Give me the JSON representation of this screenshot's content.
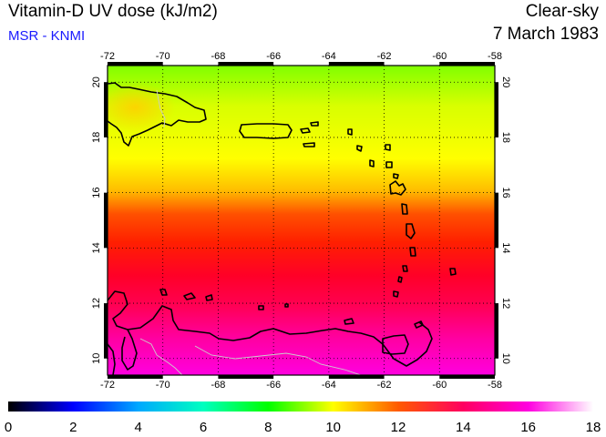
{
  "header": {
    "title": "Vitamin-D UV dose (kJ/m2)",
    "source": "MSR - KNMI",
    "condition": "Clear-sky",
    "date": "7 March 1983"
  },
  "map": {
    "lon_range": [
      -72,
      -58
    ],
    "lat_range": [
      9.4,
      20.6
    ],
    "lon_ticks": [
      -72,
      -70,
      -68,
      -66,
      -64,
      -62,
      -60,
      -58
    ],
    "lat_ticks": [
      10,
      12,
      14,
      16,
      18,
      20
    ],
    "lon_tick_labels": [
      "-72",
      "-70",
      "-68",
      "-66",
      "-64",
      "-62",
      "-60",
      "-58"
    ],
    "lat_tick_labels": [
      "10",
      "12",
      "14",
      "16",
      "18",
      "20"
    ],
    "grid": "dotted",
    "coastline_color": "#000000",
    "border_color": "#bbbbbb"
  },
  "colorbar": {
    "min": 0,
    "max": 18,
    "tick_labels": [
      "0",
      "2",
      "4",
      "6",
      "8",
      "10",
      "12",
      "14",
      "16",
      "18"
    ],
    "stops": [
      {
        "value": 0,
        "color": "#000000"
      },
      {
        "value": 2,
        "color": "#0000ff"
      },
      {
        "value": 4,
        "color": "#00a8ff"
      },
      {
        "value": 6,
        "color": "#00ffc0"
      },
      {
        "value": 8,
        "color": "#00ff00"
      },
      {
        "value": 10,
        "color": "#ffff00"
      },
      {
        "value": 12,
        "color": "#ff5a00"
      },
      {
        "value": 14,
        "color": "#ff0060"
      },
      {
        "value": 16,
        "color": "#ff00e0"
      },
      {
        "value": 18,
        "color": "#ffffff"
      }
    ]
  },
  "field_colors": {
    "lat_20": "#80ff00",
    "lat_18_5": "#d8ff00",
    "lat_17": "#ffff00",
    "lat_16": "#ffc000",
    "lat_15": "#ff5000",
    "lat_14": "#ff2000",
    "lat_13": "#ff0028",
    "lat_12": "#ff0050",
    "lat_11": "#ff00a0",
    "lat_10": "#ff00e0",
    "hispaniola_spot": "#ffd000"
  }
}
